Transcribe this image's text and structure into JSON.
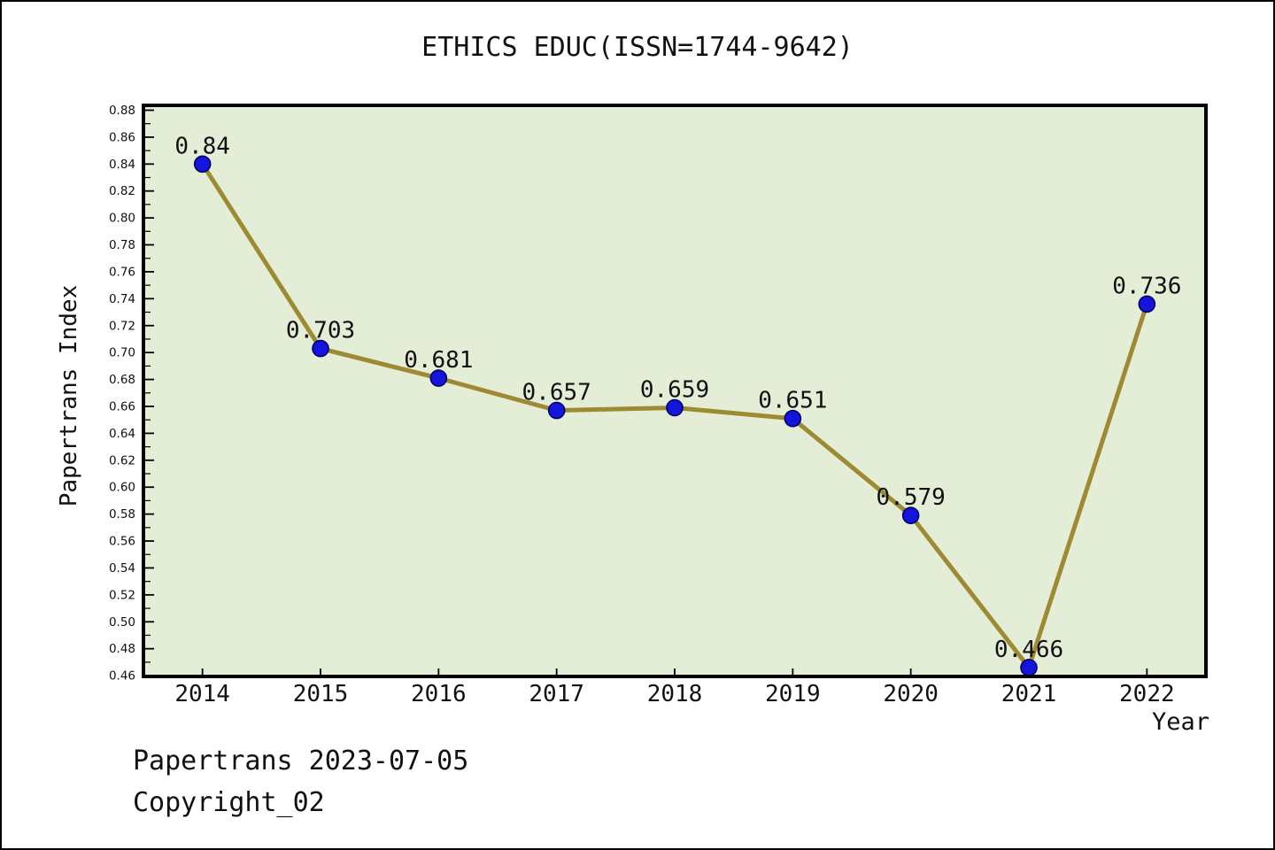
{
  "page": {
    "footer": {
      "line1": "Papertrans 2023-07-05",
      "line2": "Copyright_02"
    }
  },
  "chart_data": {
    "type": "line",
    "title": "ETHICS EDUC(ISSN=1744-9642)",
    "xlabel": "Year",
    "ylabel": "Papertrans Index",
    "x": [
      2014,
      2015,
      2016,
      2017,
      2018,
      2019,
      2020,
      2021,
      2022
    ],
    "values": [
      0.84,
      0.703,
      0.681,
      0.657,
      0.659,
      0.651,
      0.579,
      0.466,
      0.736
    ],
    "point_labels": [
      "0.84",
      "0.703",
      "0.681",
      "0.657",
      "0.659",
      "0.651",
      "0.579",
      "0.466",
      "0.736"
    ],
    "x_ticks": [
      2014,
      2015,
      2016,
      2017,
      2018,
      2019,
      2020,
      2021,
      2022
    ],
    "y_ticks": {
      "min": 0.46,
      "max": 0.88,
      "major_step": 0.02,
      "minor_step": 0.01
    },
    "xlim": [
      2013.5,
      2022.5
    ],
    "ylim": [
      0.4594,
      0.8836
    ],
    "grid": false,
    "legend": null,
    "style": {
      "plot_bg": "#E4EED7",
      "frame_color": "#000000",
      "line_color": "#9D8A33",
      "marker_fill": "#1414DC",
      "marker_edge": "#000066",
      "tick_color": "#000000",
      "label_color": "#111111"
    }
  }
}
